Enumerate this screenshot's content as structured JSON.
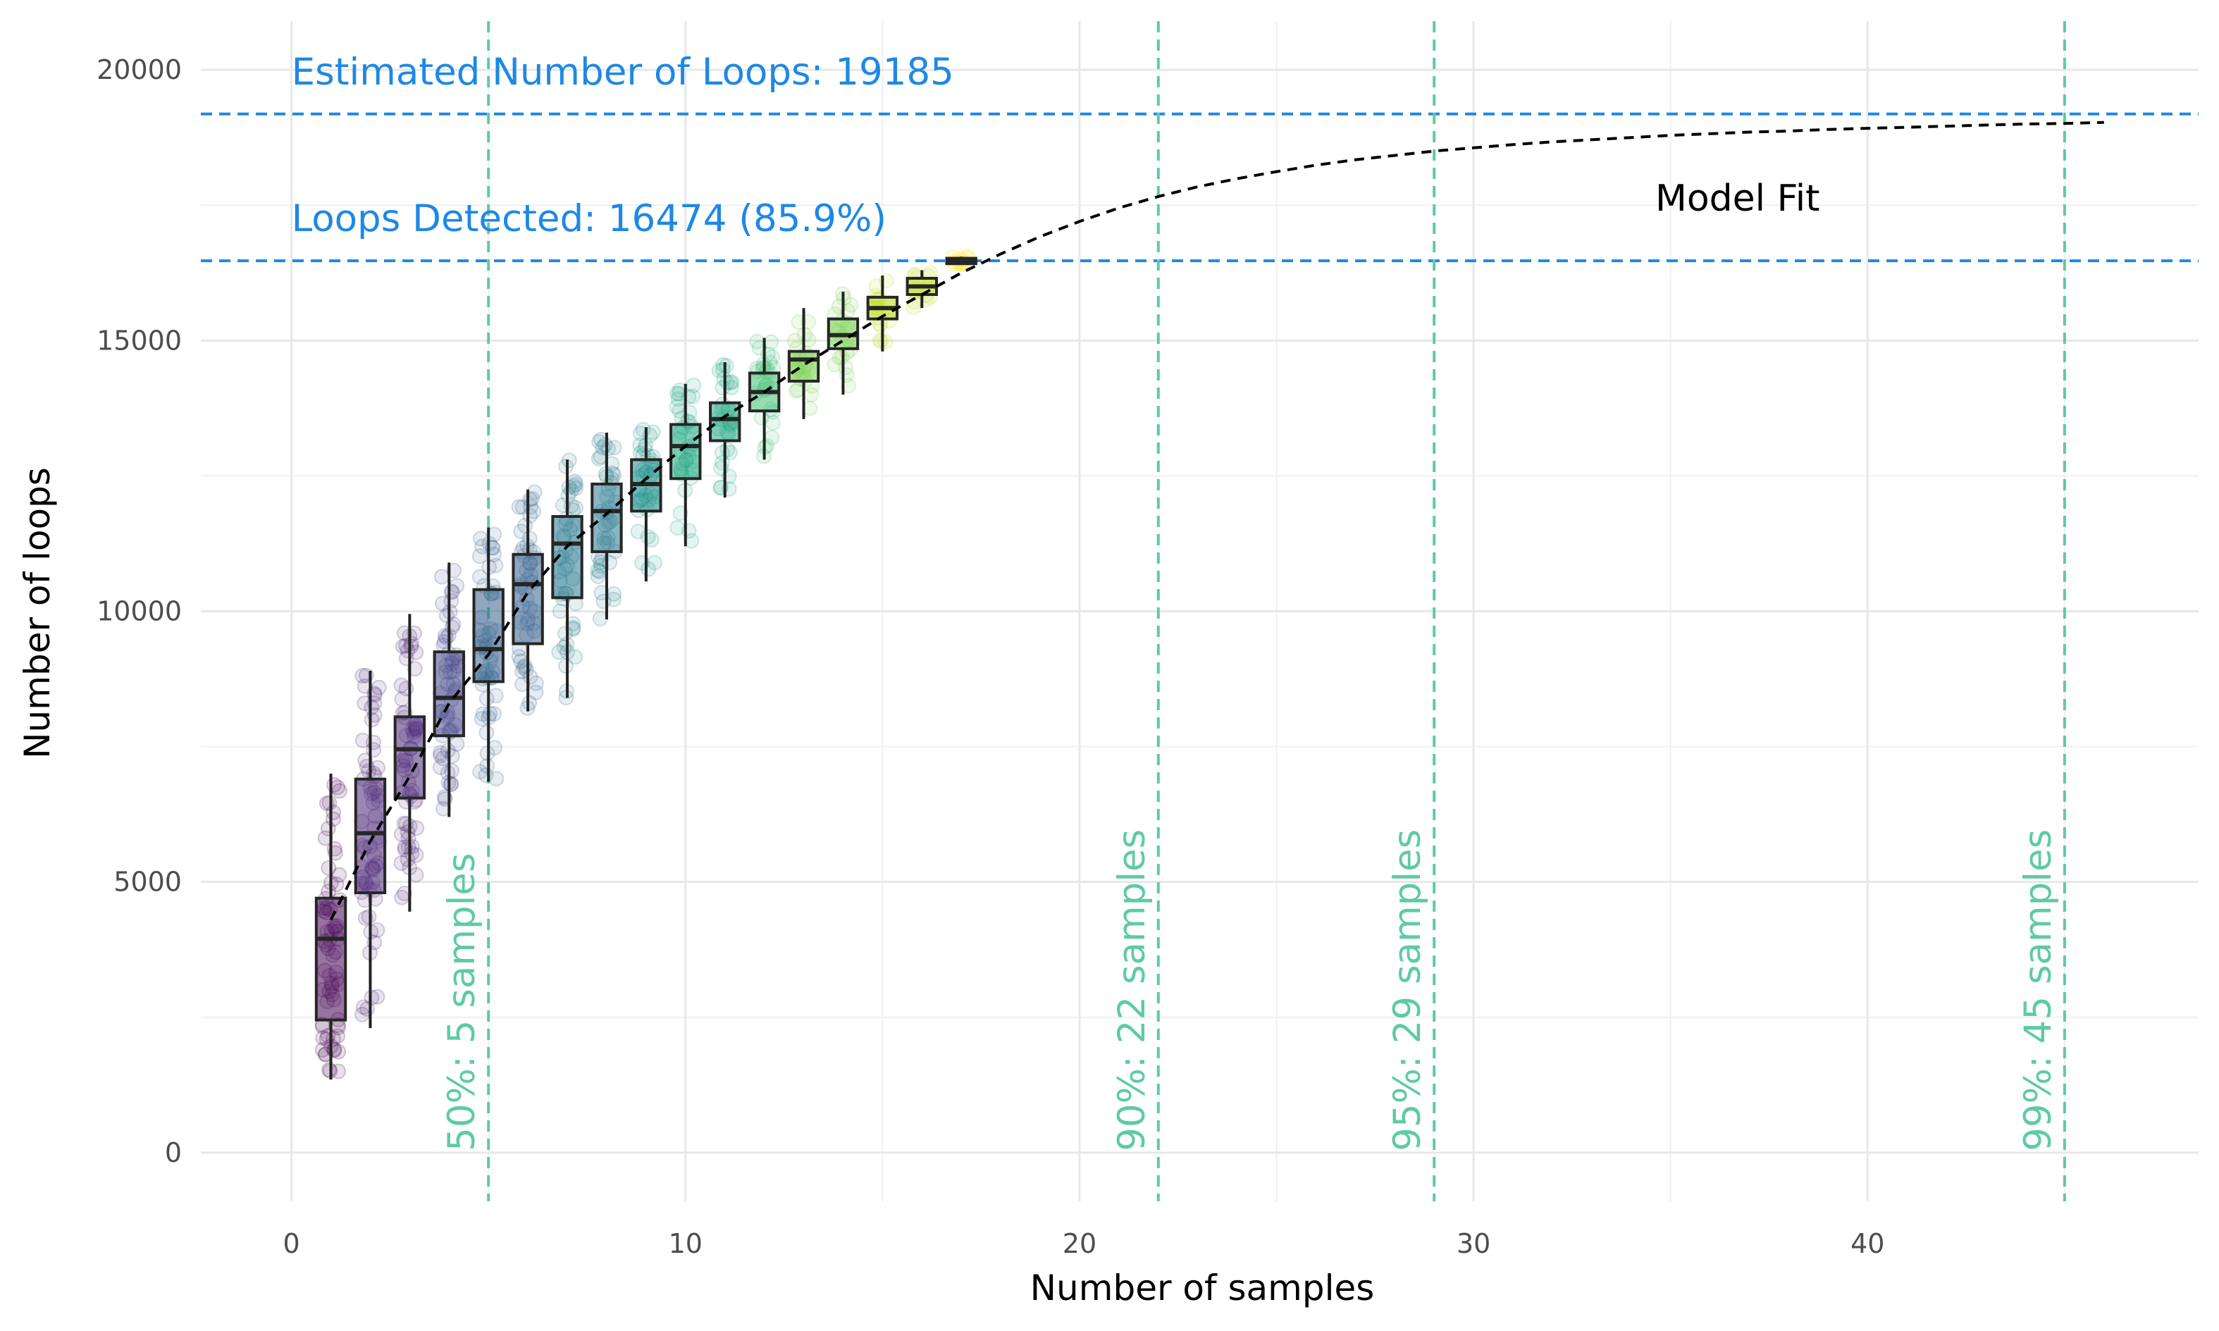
{
  "chart_data": {
    "type": "box",
    "title": "",
    "xlabel": "Number of samples",
    "ylabel": "Number of loops",
    "xlim": [
      -2.3,
      48.4
    ],
    "ylim": [
      -900,
      20900
    ],
    "x_ticks": [
      "0",
      "10",
      "20",
      "30",
      "40"
    ],
    "y_ticks": [
      "0",
      "5000",
      "10000",
      "15000",
      "20000"
    ],
    "x_tick_values": [
      0,
      10,
      20,
      30,
      40
    ],
    "y_tick_values": [
      0,
      5000,
      10000,
      15000,
      20000
    ],
    "grid": true,
    "legend": "none",
    "boxes": [
      {
        "x": 1,
        "q1": 2450,
        "median": 3950,
        "q3": 4700,
        "whisker_low": 1350,
        "whisker_high": 7000
      },
      {
        "x": 2,
        "q1": 4800,
        "median": 5900,
        "q3": 6900,
        "whisker_low": 2300,
        "whisker_high": 8900
      },
      {
        "x": 3,
        "q1": 6550,
        "median": 7450,
        "q3": 8050,
        "whisker_low": 4450,
        "whisker_high": 9950
      },
      {
        "x": 4,
        "q1": 7700,
        "median": 8400,
        "q3": 9250,
        "whisker_low": 6200,
        "whisker_high": 10900
      },
      {
        "x": 5,
        "q1": 8700,
        "median": 9300,
        "q3": 10400,
        "whisker_low": 6850,
        "whisker_high": 11550
      },
      {
        "x": 6,
        "q1": 9400,
        "median": 10500,
        "q3": 11050,
        "whisker_low": 8150,
        "whisker_high": 12250
      },
      {
        "x": 7,
        "q1": 10250,
        "median": 11250,
        "q3": 11750,
        "whisker_low": 8400,
        "whisker_high": 12800
      },
      {
        "x": 8,
        "q1": 11100,
        "median": 11850,
        "q3": 12350,
        "whisker_low": 9850,
        "whisker_high": 13300
      },
      {
        "x": 9,
        "q1": 11850,
        "median": 12350,
        "q3": 12800,
        "whisker_low": 10550,
        "whisker_high": 13400
      },
      {
        "x": 10,
        "q1": 12450,
        "median": 13050,
        "q3": 13450,
        "whisker_low": 11200,
        "whisker_high": 14200
      },
      {
        "x": 11,
        "q1": 13150,
        "median": 13550,
        "q3": 13850,
        "whisker_low": 12100,
        "whisker_high": 14600
      },
      {
        "x": 12,
        "q1": 13700,
        "median": 14050,
        "q3": 14400,
        "whisker_low": 12800,
        "whisker_high": 15050
      },
      {
        "x": 13,
        "q1": 14250,
        "median": 14650,
        "q3": 14800,
        "whisker_low": 13550,
        "whisker_high": 15600
      },
      {
        "x": 14,
        "q1": 14850,
        "median": 15100,
        "q3": 15400,
        "whisker_low": 14000,
        "whisker_high": 15900
      },
      {
        "x": 15,
        "q1": 15400,
        "median": 15600,
        "q3": 15800,
        "whisker_low": 14800,
        "whisker_high": 16200
      },
      {
        "x": 16,
        "q1": 15850,
        "median": 16000,
        "q3": 16150,
        "whisker_low": 15600,
        "whisker_high": 16300
      },
      {
        "x": 17,
        "q1": 16420,
        "median": 16474,
        "q3": 16520,
        "whisker_low": 16400,
        "whisker_high": 16550
      }
    ],
    "box_colors": [
      "#440154",
      "#482475",
      "#414487",
      "#355f8d",
      "#2a788e",
      "#21908d",
      "#22a884",
      "#42be71",
      "#7ad151",
      "#bddf26",
      "#fde725"
    ],
    "model_fit": {
      "asymptote": 19185,
      "x": [
        1,
        2,
        3,
        4,
        5,
        6,
        7,
        8,
        9,
        10,
        11,
        12,
        13,
        14,
        15,
        16,
        17,
        18,
        19,
        20,
        21,
        22,
        23,
        24,
        25,
        26,
        27,
        28,
        29,
        30,
        31,
        32,
        33,
        34,
        35,
        36,
        37,
        38,
        39,
        40,
        41,
        42,
        43,
        44,
        45,
        46
      ],
      "y": [
        4300,
        5750,
        6950,
        8300,
        9200,
        10350,
        11200,
        11800,
        12450,
        13050,
        13600,
        14050,
        14550,
        15000,
        15450,
        15850,
        16250,
        16600,
        16920,
        17200,
        17450,
        17660,
        17840,
        17990,
        18120,
        18240,
        18340,
        18420,
        18500,
        18560,
        18620,
        18670,
        18710,
        18750,
        18790,
        18820,
        18850,
        18870,
        18900,
        18920,
        18940,
        18960,
        18980,
        19000,
        19010,
        19030
      ],
      "label": "Model Fit",
      "label_x": 36.7,
      "label_y": 17400
    },
    "hlines": [
      {
        "y": 19185,
        "label": "Estimated Number of Loops: 19185",
        "color": "#1e88e5"
      },
      {
        "y": 16474,
        "label": "Loops Detected: 16474 (85.9%)",
        "color": "#1e88e5"
      }
    ],
    "vlines": [
      {
        "x": 5,
        "label": "50%: 5 samples",
        "color": "#5ecba1"
      },
      {
        "x": 22,
        "label": "90%: 22 samples",
        "color": "#5ecba1"
      },
      {
        "x": 29,
        "label": "95%: 29 samples",
        "color": "#5ecba1"
      },
      {
        "x": 45,
        "label": "99%: 45 samples",
        "color": "#5ecba1"
      }
    ]
  }
}
